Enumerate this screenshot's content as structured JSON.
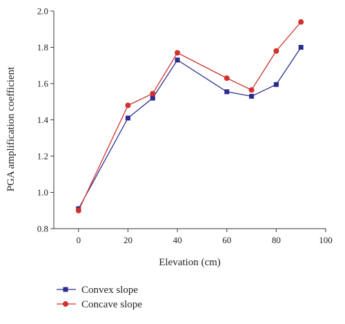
{
  "chart_data": {
    "type": "line",
    "title": "",
    "xlabel": "Elevation (cm)",
    "ylabel": "PGA amplification coefficient",
    "x": [
      0,
      20,
      30,
      40,
      60,
      70,
      80,
      90
    ],
    "xlim": [
      -10,
      100
    ],
    "ylim": [
      0.8,
      2.0
    ],
    "xticks": [
      0,
      20,
      40,
      60,
      80,
      100
    ],
    "yticks": [
      0.8,
      1.0,
      1.2,
      1.4,
      1.6,
      1.8,
      2.0
    ],
    "xtick_labels": [
      "0",
      "20",
      "40",
      "60",
      "80",
      "100"
    ],
    "ytick_labels": [
      "0.8",
      "1.0",
      "1.2",
      "1.4",
      "1.6",
      "1.8",
      "2.0"
    ],
    "grid": false,
    "legend_position": "bottom-left, below plot",
    "series": [
      {
        "name": "Convex slope",
        "values": [
          0.91,
          1.41,
          1.52,
          1.73,
          1.555,
          1.53,
          1.595,
          1.8
        ],
        "color": "#2b2b8e",
        "marker": "square"
      },
      {
        "name": "Concave slope",
        "values": [
          0.9,
          1.48,
          1.545,
          1.77,
          1.63,
          1.565,
          1.78,
          1.94
        ],
        "color": "#d0312d",
        "marker": "circle"
      }
    ]
  }
}
